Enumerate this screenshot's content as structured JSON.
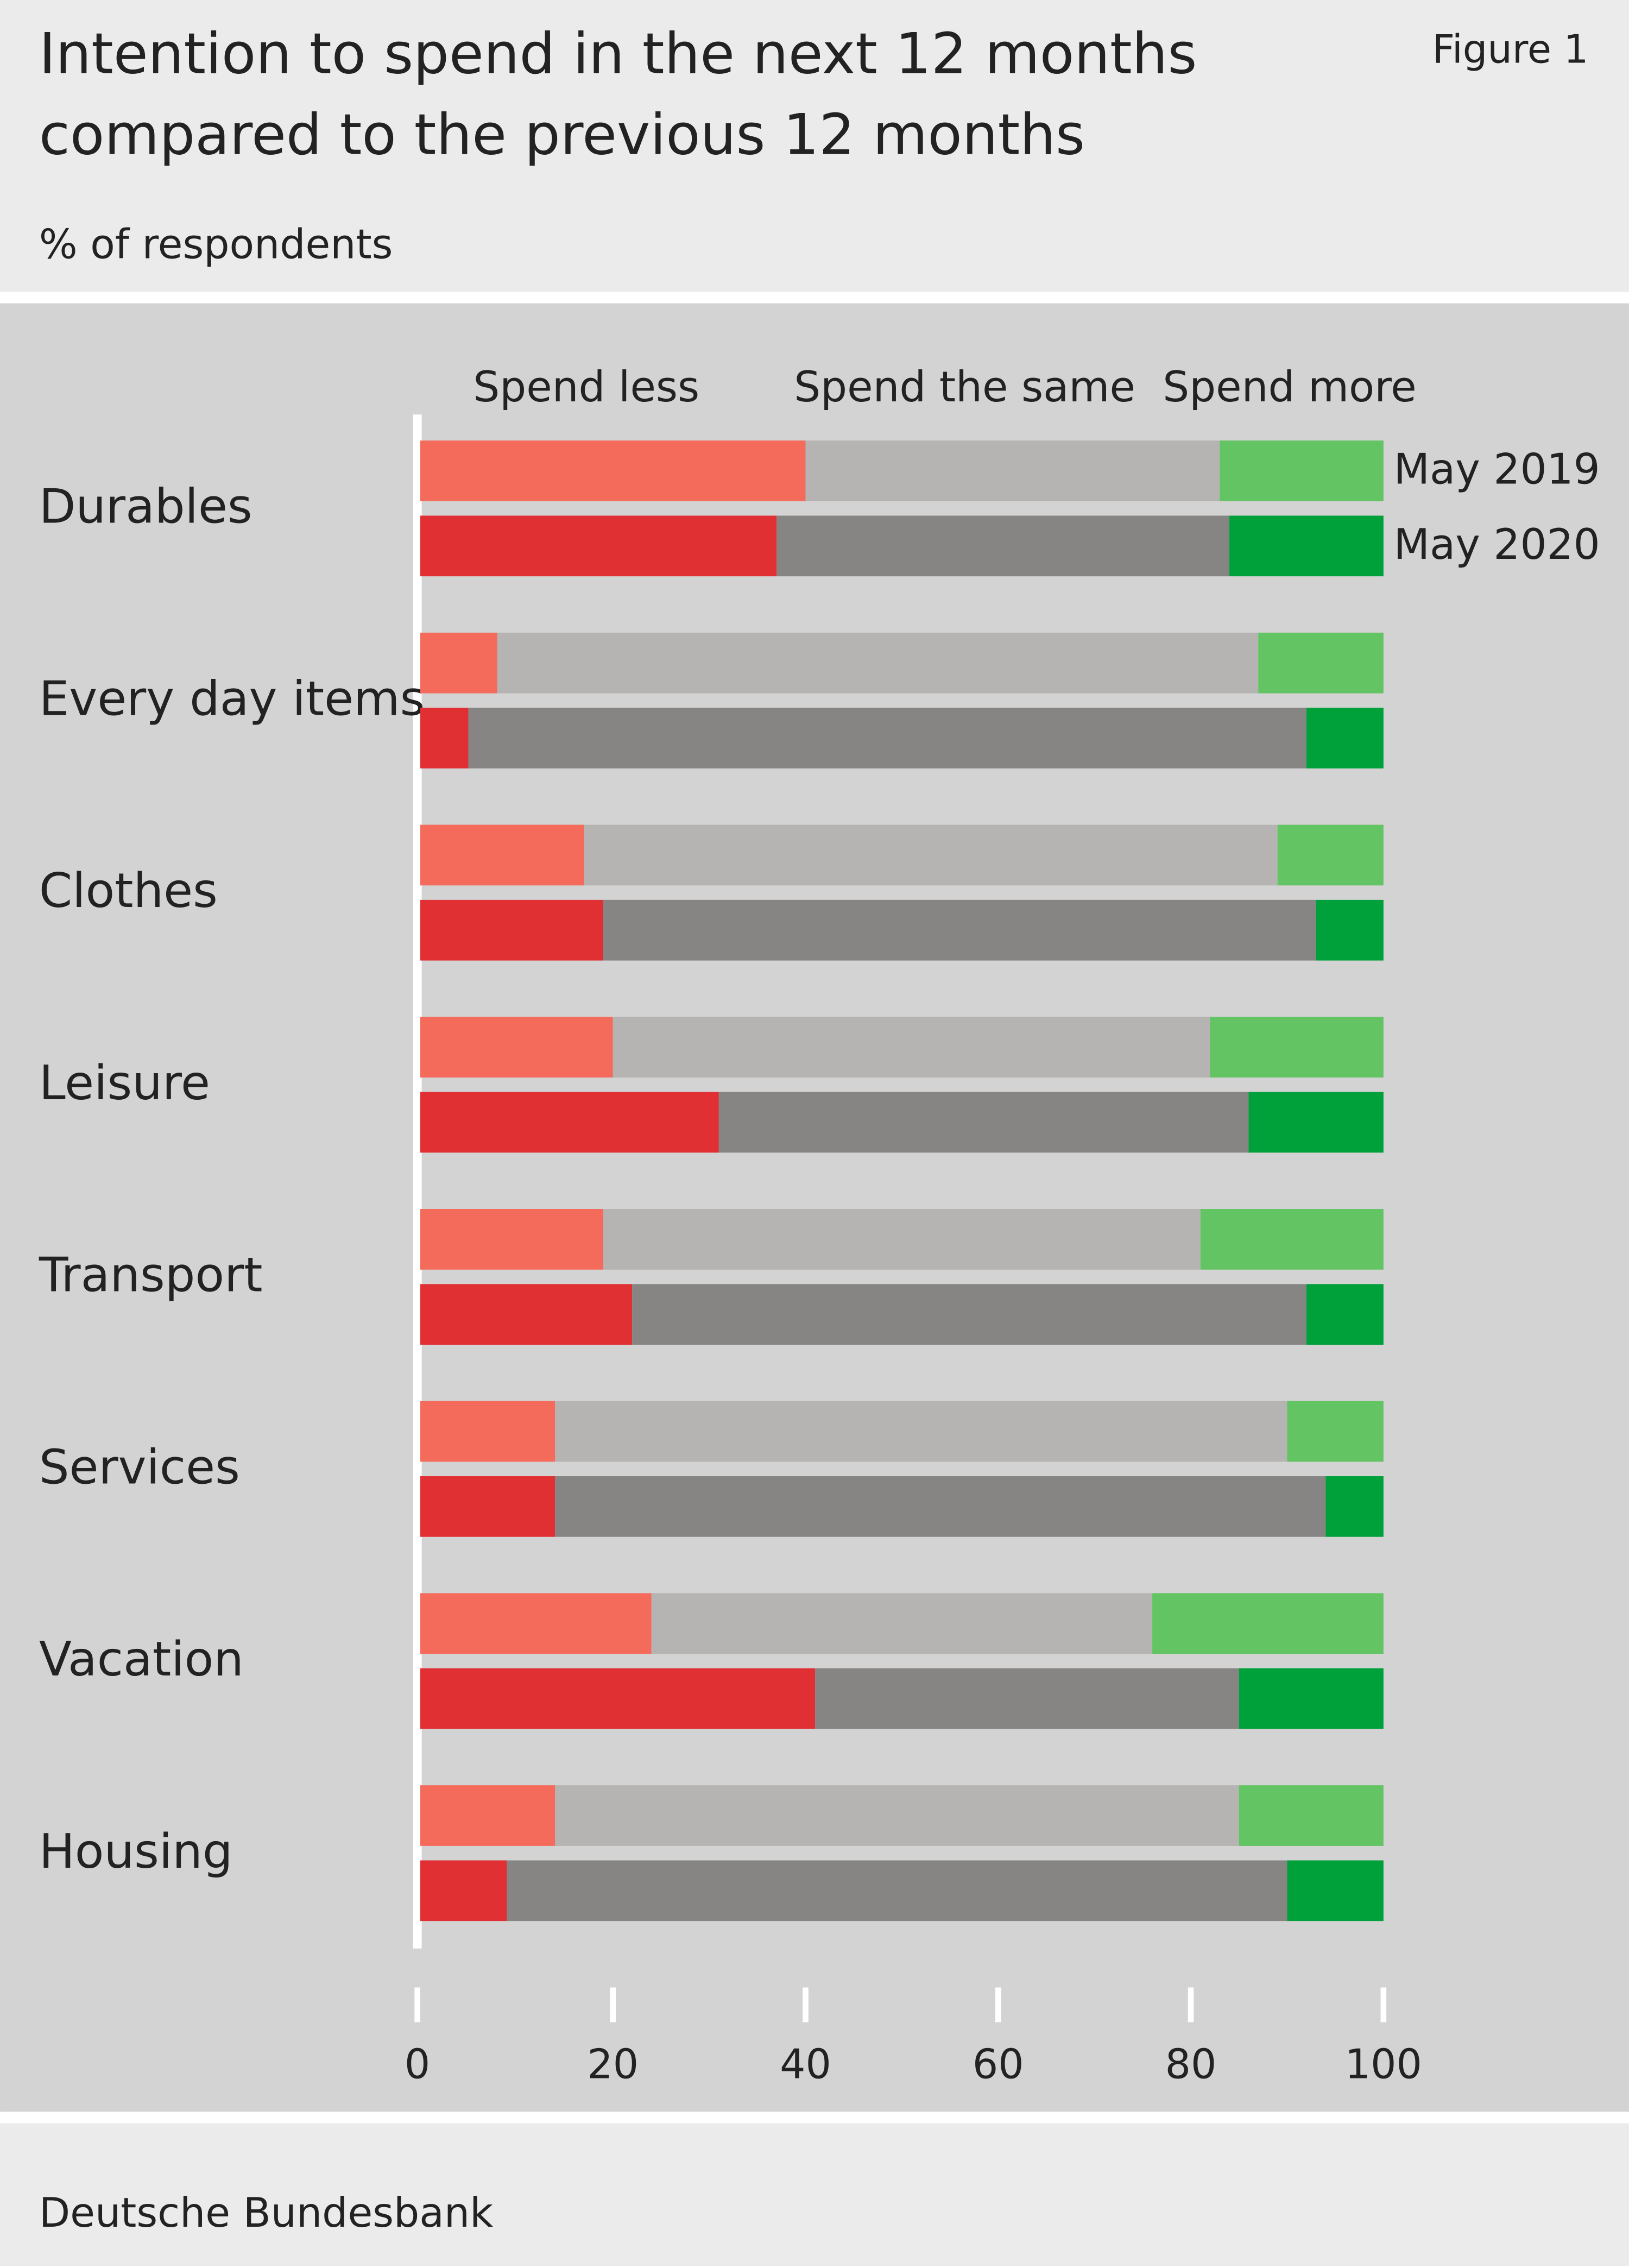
{
  "chart_data": {
    "type": "stacked-bar-pairs",
    "figure_label": "Figure 1",
    "title": [
      "Intention to spend in the next 12 months",
      "compared to the previous 12 months"
    ],
    "subtitle": "% of respondents",
    "source": "Deutsche Bundesbank",
    "categories": [
      "Durables",
      "Every day items",
      "Clothes",
      "Leisure",
      "Transport",
      "Services",
      "Vacation",
      "Housing"
    ],
    "segments": [
      "Spend less",
      "Spend the same",
      "Spend more"
    ],
    "periods": [
      {
        "name": "May 2019",
        "colors": [
          "#f46b5b",
          "#b5b4b2",
          "#62c462"
        ],
        "values": [
          [
            40,
            8,
            17,
            20,
            19,
            14,
            24,
            14
          ],
          [
            43,
            79,
            72,
            62,
            62,
            76,
            52,
            71
          ],
          [
            17,
            13,
            11,
            18,
            19,
            10,
            24,
            15
          ]
        ]
      },
      {
        "name": "May 2020",
        "colors": [
          "#e03034",
          "#868584",
          "#00a03a"
        ],
        "values": [
          [
            37,
            5,
            19,
            31,
            22,
            14,
            41,
            9
          ],
          [
            47,
            87,
            74,
            55,
            70,
            80,
            44,
            81
          ],
          [
            16,
            8,
            7,
            14,
            8,
            6,
            15,
            10
          ]
        ]
      }
    ],
    "xlim": [
      0,
      100
    ],
    "xticks": [
      0,
      20,
      40,
      60,
      80,
      100
    ]
  }
}
